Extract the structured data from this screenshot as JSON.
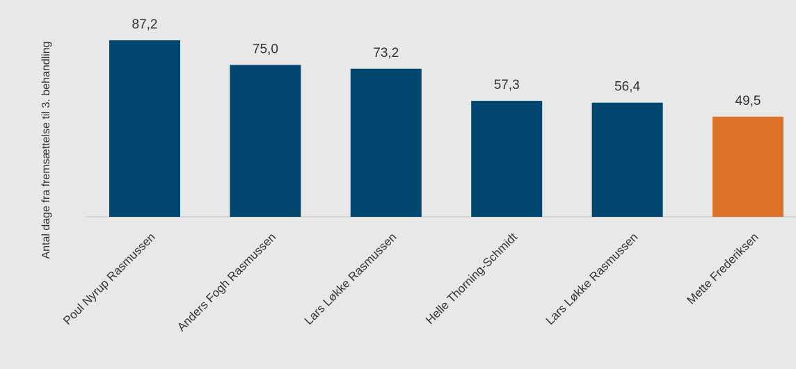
{
  "chart_data": {
    "type": "bar",
    "categories": [
      "Poul Nyrup Rasmussen",
      "Anders Fogh Rasmussen",
      "Lars Løkke Rasmussen",
      "Helle Thorning-Schmidt",
      "Lars Løkke Rasmussen",
      "Mette Frederiksen"
    ],
    "values": [
      87.2,
      75.0,
      73.2,
      57.3,
      56.4,
      49.5
    ],
    "value_labels": [
      "87,2",
      "75,0",
      "73,2",
      "57,3",
      "56,4",
      "49,5"
    ],
    "bar_colors": [
      "#00466f",
      "#00466f",
      "#00466f",
      "#00466f",
      "#00466f",
      "#dc7228"
    ],
    "ylabel": "Antal dage fra fremsættelse til 3. behandling",
    "ylim": [
      0,
      100
    ],
    "grid": false,
    "legend": "none"
  }
}
